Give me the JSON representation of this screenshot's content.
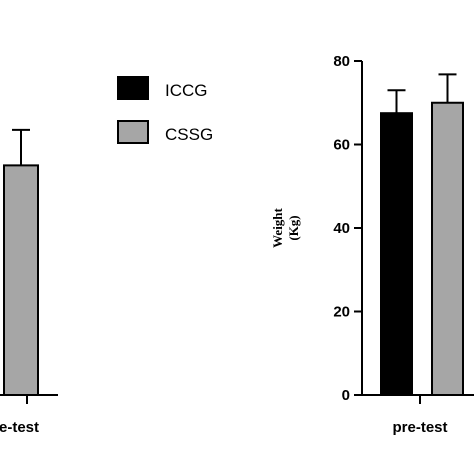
{
  "chart_data": [
    {
      "panel": "left",
      "type": "bar",
      "categories": [
        "pre-test"
      ],
      "category_label_visible": "e-test",
      "series": [
        {
          "name": "CSSG",
          "values": [
            55
          ],
          "error": [
            8.5
          ],
          "color": "#a6a6a6"
        }
      ]
    },
    {
      "panel": "right",
      "type": "bar",
      "categories": [
        "pre-test"
      ],
      "ylabel": [
        "Weight",
        "(Kg)"
      ],
      "ylim": [
        0,
        80
      ],
      "yticks": [
        "0",
        "20",
        "40",
        "60",
        "80"
      ],
      "series": [
        {
          "name": "ICCG",
          "values": [
            67.5
          ],
          "error": [
            5.5
          ],
          "color": "#000000"
        },
        {
          "name": "CSSG",
          "values": [
            70
          ],
          "error": [
            6.8
          ],
          "color": "#a6a6a6"
        }
      ]
    }
  ],
  "legend": [
    {
      "name": "ICCG",
      "color": "#000000"
    },
    {
      "name": "CSSG",
      "color": "#a6a6a6"
    }
  ]
}
